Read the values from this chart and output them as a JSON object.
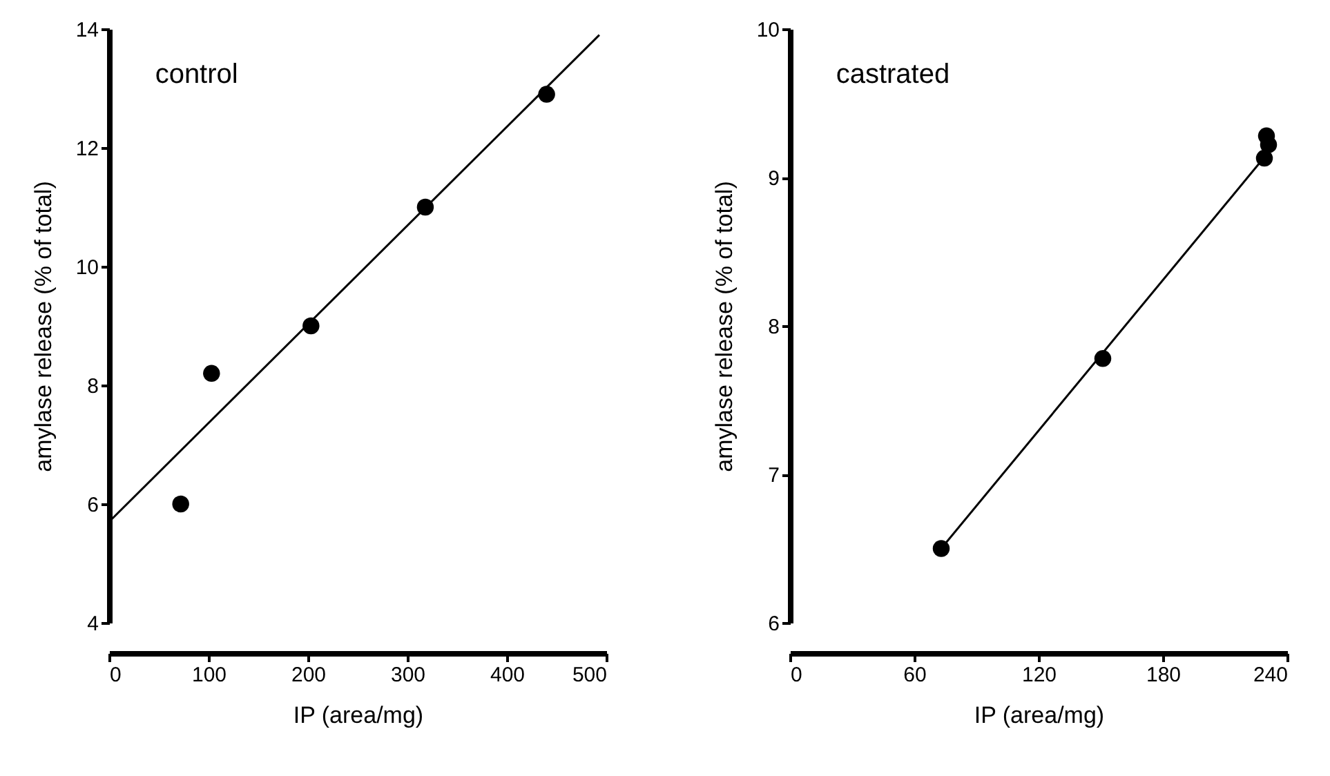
{
  "chart_data": [
    {
      "type": "scatter",
      "title": "control",
      "xlabel": "IP (area/mg)",
      "ylabel": "amylase release (% of total)",
      "xlim": [
        0,
        500
      ],
      "ylim": [
        4,
        14
      ],
      "xticks": [
        0,
        100,
        200,
        300,
        400,
        500
      ],
      "yticks": [
        4,
        6,
        8,
        10,
        12,
        14
      ],
      "grid": false,
      "series": [
        {
          "color": "#000000",
          "marker": "circle",
          "x": [
            72,
            103,
            203,
            318,
            440
          ],
          "values": [
            6.0,
            8.2,
            9.0,
            11.0,
            12.9
          ]
        },
        {
          "type": "line",
          "color": "#000000",
          "line_style": "solid",
          "x": [
            0,
            493
          ],
          "values": [
            5.7,
            13.9
          ]
        }
      ]
    },
    {
      "type": "scatter",
      "title": "castrated",
      "xlabel": "IP (area/mg)",
      "ylabel": "amylase release (% of total)",
      "xlim": [
        0,
        240
      ],
      "ylim": [
        6,
        10
      ],
      "xticks": [
        0,
        60,
        120,
        180,
        240
      ],
      "yticks": [
        6,
        7,
        8,
        9,
        10
      ],
      "grid": false,
      "series": [
        {
          "color": "#000000",
          "marker": "circle",
          "x": [
            73,
            151,
            229,
            230,
            231
          ],
          "values": [
            6.5,
            7.78,
            9.13,
            9.28,
            9.22
          ]
        },
        {
          "type": "line",
          "color": "#000000",
          "line_style": "solid",
          "x": [
            73,
            228
          ],
          "values": [
            6.5,
            9.12
          ]
        }
      ]
    }
  ]
}
